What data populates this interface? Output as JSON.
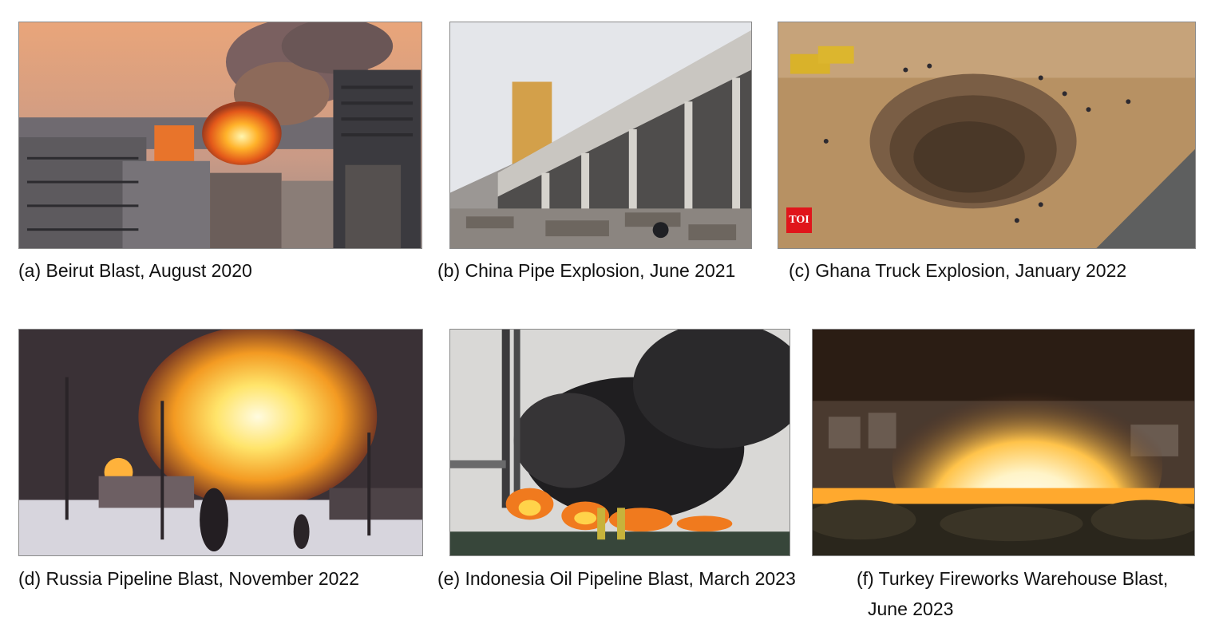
{
  "figure": {
    "panels": [
      {
        "id": "a",
        "caption": "(a) Beirut Blast, August 2020"
      },
      {
        "id": "b",
        "caption": "(b) China Pipe Explosion, June 2021"
      },
      {
        "id": "c",
        "caption": "(c) Ghana Truck Explosion, January 2022",
        "watermark": "TOI"
      },
      {
        "id": "d",
        "caption": "(d) Russia Pipeline Blast, November 2022"
      },
      {
        "id": "e",
        "caption": "(e) Indonesia Oil Pipeline Blast, March 2023"
      },
      {
        "id": "f",
        "caption": "(f) Turkey Fireworks Warehouse Blast,",
        "caption_line2": "June 2023"
      }
    ]
  }
}
